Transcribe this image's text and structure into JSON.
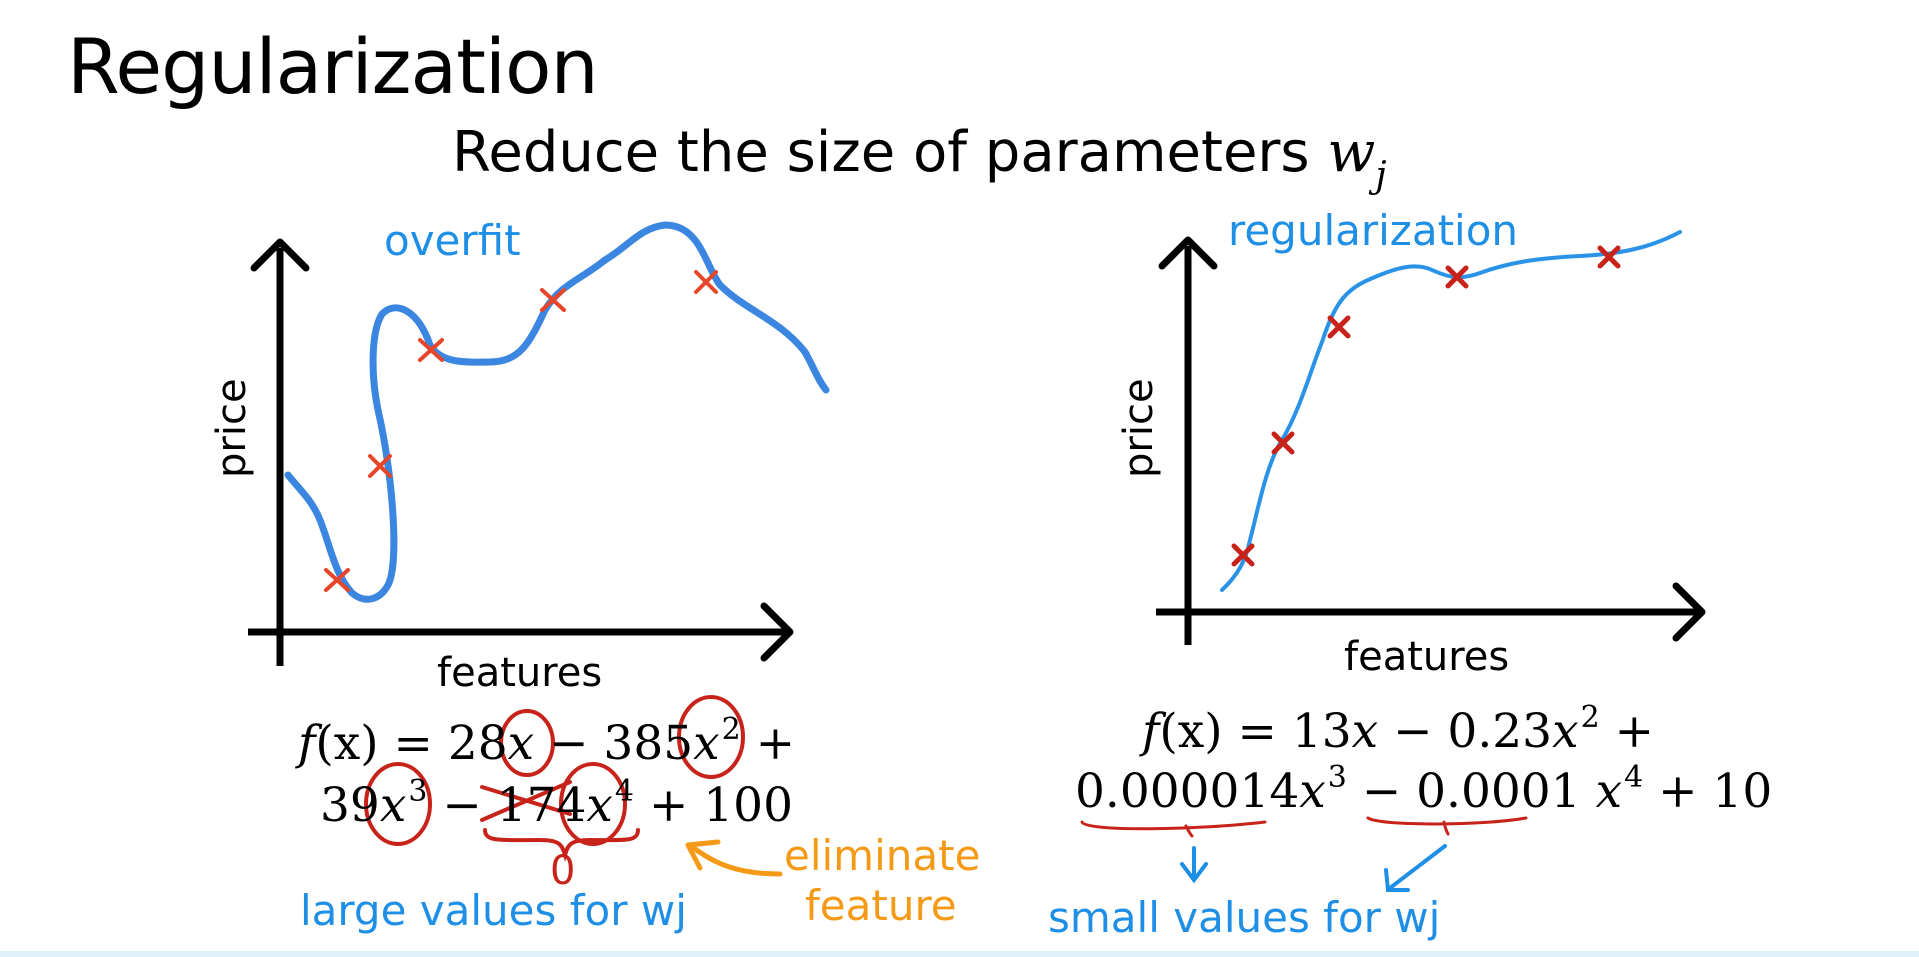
{
  "slide": {
    "title": "Regularization",
    "subtitle_text": "Reduce the size of parameters ",
    "subtitle_symbol": "w",
    "subtitle_subscript": "j"
  },
  "left_panel": {
    "curve_label": "overfit",
    "ylabel": "price",
    "xlabel": "features",
    "equation_line1": {
      "f": "f",
      "prefix": "(x) = 28",
      "x": "x",
      "middle": " − 385",
      "x2": "x",
      "sup2": "2",
      "end": " +"
    },
    "equation_line2": {
      "prefix": "39",
      "x3": "x",
      "sup3": "3",
      "middle": " − 174",
      "x4": "x",
      "sup4": "4",
      "end": " + 100"
    },
    "zero_annotation": "0",
    "eliminate_line1": "eliminate",
    "eliminate_line2": "feature",
    "values_note": "large values for wj",
    "colors": {
      "curve": "#3b86e0",
      "marker": "#e8462a",
      "circle": "#c8231a",
      "note_blue": "#1f8fe6",
      "note_orange": "#f59a16"
    }
  },
  "right_panel": {
    "curve_label": "regularization",
    "ylabel": "price",
    "xlabel": "features",
    "equation_line1": {
      "f": "f",
      "prefix": "(x) = 13",
      "x": "x",
      "middle": " − 0.23",
      "x2": "x",
      "sup2": "2",
      "end": " +"
    },
    "equation_line2": {
      "coef3": "0.000014",
      "x3": "x",
      "sup3": "3",
      "middle": " − ",
      "coef4": "0.0001",
      "x4": "x",
      "sup4": "4",
      "end": " + 10"
    },
    "values_note": "small values for wj",
    "colors": {
      "curve": "#2a93e8",
      "marker": "#c8231a"
    }
  }
}
